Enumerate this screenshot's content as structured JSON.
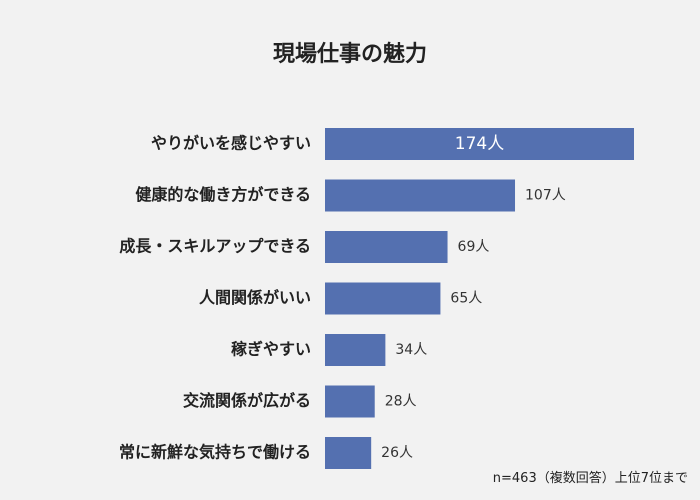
{
  "chart_data": {
    "type": "bar",
    "orientation": "horizontal",
    "title": "現場仕事の魅力",
    "categories": [
      "やりがいを感じやすい",
      "健康的な働き方ができる",
      "成長・スキルアップできる",
      "人間関係がいい",
      "稼ぎやすい",
      "交流関係が広がる",
      "常に新鮮な気持ちで働ける"
    ],
    "values": [
      174,
      107,
      69,
      65,
      34,
      28,
      26
    ],
    "value_labels": [
      "174人",
      "107人",
      "69人",
      "65人",
      "34人",
      "28人",
      "26人"
    ],
    "unit": "人",
    "xlim": [
      0,
      180
    ],
    "grid": false,
    "bar_color": "#5470b0",
    "note": "n=463（複数回答）上位7位まで"
  }
}
